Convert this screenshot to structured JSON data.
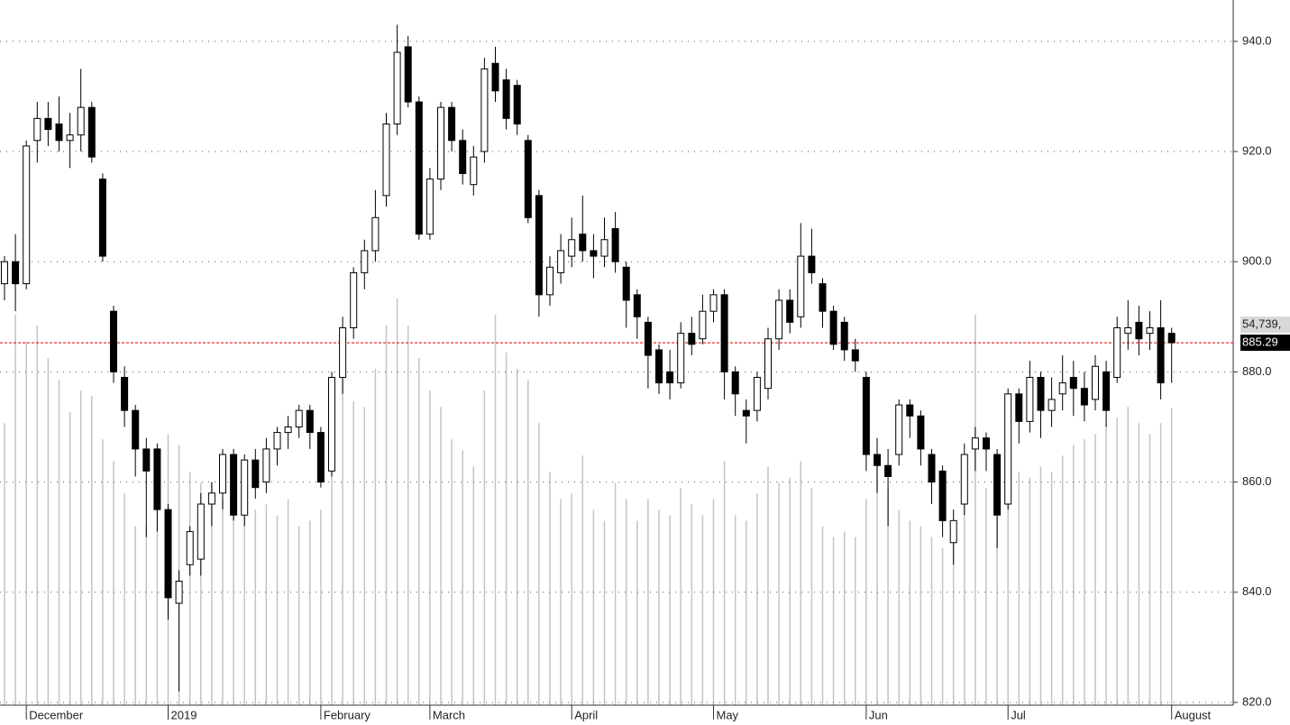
{
  "chart_data": {
    "type": "candlestick",
    "categories": [
      null,
      null,
      "December",
      null,
      null,
      null,
      null,
      null,
      null,
      null,
      null,
      null,
      null,
      null,
      null,
      "2019",
      null,
      null,
      null,
      null,
      null,
      null,
      null,
      null,
      null,
      null,
      null,
      null,
      null,
      "February",
      null,
      null,
      null,
      null,
      null,
      null,
      null,
      null,
      null,
      "March",
      null,
      null,
      null,
      null,
      null,
      null,
      null,
      null,
      null,
      null,
      null,
      null,
      "April",
      null,
      null,
      null,
      null,
      null,
      null,
      null,
      null,
      null,
      null,
      null,
      null,
      "May",
      null,
      null,
      null,
      null,
      null,
      null,
      null,
      null,
      null,
      null,
      null,
      null,
      null,
      "Jun",
      null,
      null,
      null,
      null,
      null,
      null,
      null,
      null,
      null,
      null,
      null,
      null,
      "Jul",
      null,
      null,
      null,
      null,
      null,
      null,
      null,
      null,
      null,
      null,
      null,
      null,
      null,
      null,
      "August"
    ],
    "open": [
      896,
      900,
      896,
      922,
      926,
      925,
      922,
      923,
      928,
      915,
      891,
      879,
      873,
      866,
      866,
      855,
      838,
      845,
      846,
      856,
      858,
      865,
      854,
      864,
      860,
      866,
      869,
      870,
      873,
      869,
      862,
      879,
      888,
      898,
      902,
      912,
      925,
      939,
      929,
      905,
      915,
      928,
      922,
      914,
      920,
      936,
      933,
      932,
      922,
      912,
      894,
      898,
      901,
      905,
      902,
      901,
      906,
      899,
      894,
      889,
      884,
      880,
      878,
      887,
      886,
      891,
      894,
      880,
      873,
      873,
      877,
      886,
      893,
      890,
      901,
      896,
      891,
      889,
      884,
      879,
      865,
      863,
      865,
      874,
      872,
      865,
      862,
      849,
      856,
      866,
      868,
      865,
      856,
      876,
      871,
      879,
      873,
      876,
      879,
      877,
      875,
      880,
      879,
      887,
      889,
      887,
      888,
      887
    ],
    "high": [
      901,
      905,
      922,
      929,
      929,
      930,
      927,
      935,
      929,
      916,
      892,
      881,
      874,
      868,
      867,
      856,
      844,
      852,
      858,
      860,
      866,
      866,
      865,
      866,
      868,
      870,
      872,
      874,
      874,
      870,
      880,
      890,
      899,
      904,
      913,
      927,
      943,
      941,
      930,
      917,
      929,
      929,
      924,
      921,
      937,
      939,
      935,
      933,
      923,
      913,
      901,
      905,
      908,
      912,
      905,
      908,
      909,
      900,
      895,
      890,
      885,
      884,
      889,
      890,
      894,
      895,
      895,
      881,
      875,
      880,
      888,
      895,
      895,
      907,
      906,
      897,
      892,
      890,
      886,
      880,
      868,
      866,
      875,
      875,
      873,
      866,
      863,
      855,
      867,
      870,
      869,
      866,
      877,
      877,
      882,
      880,
      879,
      883,
      882,
      880,
      883,
      882,
      890,
      893,
      892,
      891,
      893,
      888
    ],
    "low": [
      893,
      891,
      895,
      918,
      921,
      920,
      917,
      920,
      918,
      900,
      878,
      870,
      861,
      850,
      851,
      835,
      822,
      843,
      843,
      852,
      855,
      853,
      852,
      857,
      858,
      863,
      866,
      868,
      866,
      859,
      861,
      876,
      886,
      895,
      900,
      910,
      923,
      928,
      904,
      904,
      913,
      920,
      914,
      912,
      918,
      929,
      924,
      923,
      907,
      890,
      892,
      896,
      899,
      900,
      897,
      899,
      898,
      888,
      886,
      877,
      876,
      875,
      877,
      883,
      885,
      889,
      875,
      872,
      867,
      871,
      875,
      884,
      887,
      888,
      896,
      888,
      884,
      882,
      880,
      862,
      858,
      852,
      863,
      868,
      863,
      856,
      850,
      845,
      854,
      862,
      862,
      848,
      855,
      867,
      869,
      868,
      870,
      873,
      872,
      871,
      873,
      870,
      878,
      884,
      883,
      884,
      875,
      878
    ],
    "close": [
      900,
      896,
      921,
      926,
      924,
      922,
      923,
      928,
      919,
      901,
      880,
      873,
      866,
      862,
      855,
      839,
      842,
      851,
      856,
      858,
      865,
      854,
      864,
      859,
      866,
      869,
      870,
      873,
      869,
      860,
      879,
      888,
      898,
      902,
      908,
      925,
      938,
      929,
      905,
      915,
      928,
      922,
      916,
      919,
      935,
      931,
      926,
      925,
      908,
      894,
      899,
      902,
      904,
      902,
      901,
      904,
      900,
      893,
      890,
      883,
      878,
      878,
      887,
      885,
      891,
      894,
      880,
      876,
      872,
      879,
      886,
      893,
      889,
      901,
      898,
      891,
      885,
      884,
      882,
      865,
      863,
      861,
      874,
      872,
      866,
      860,
      853,
      853,
      865,
      868,
      866,
      854,
      876,
      871,
      879,
      873,
      875,
      878,
      877,
      874,
      881,
      873,
      888,
      888,
      886,
      888,
      878,
      885.29
    ],
    "volume": [
      52000,
      72000,
      67000,
      70000,
      64000,
      60000,
      54000,
      58000,
      57000,
      49000,
      45000,
      39000,
      33000,
      33000,
      40000,
      50000,
      48000,
      43000,
      41000,
      41000,
      38000,
      40000,
      37000,
      36000,
      37000,
      35000,
      38000,
      33000,
      34000,
      36000,
      55000,
      60000,
      56000,
      55000,
      62000,
      70000,
      75000,
      70000,
      64000,
      58000,
      55000,
      49000,
      47000,
      44000,
      58000,
      72000,
      65000,
      62000,
      60000,
      52000,
      43000,
      38000,
      39000,
      46000,
      36000,
      34000,
      41000,
      38000,
      34000,
      38000,
      36000,
      35000,
      40000,
      37000,
      35000,
      38000,
      45000,
      35000,
      34000,
      39000,
      44000,
      41000,
      42000,
      45000,
      40000,
      33000,
      31000,
      32000,
      31000,
      38000,
      45000,
      40000,
      36000,
      34000,
      33000,
      31000,
      29000,
      32000,
      37000,
      72000,
      40000,
      45000,
      43000,
      43000,
      42000,
      44000,
      43000,
      46000,
      48000,
      49000,
      50000,
      52000,
      53000,
      55000,
      52000,
      50000,
      52000,
      54739
    ],
    "ylim": [
      819.5,
      947.5
    ],
    "yticks": [
      {
        "value": 820,
        "label": "820.0"
      },
      {
        "value": 840,
        "label": "840.0"
      },
      {
        "value": 860,
        "label": "860.0"
      },
      {
        "value": 880,
        "label": "880.0"
      },
      {
        "value": 900,
        "label": "900.0"
      },
      {
        "value": 920,
        "label": "920.0"
      },
      {
        "value": 940,
        "label": "940.0"
      }
    ],
    "volume_ylim": [
      0,
      130000
    ],
    "last_price": 885.29,
    "last_volume": {
      "value": 54739,
      "label": "54,739,"
    },
    "up_color": "#ffffff",
    "down_color": "#000000",
    "volume_color": "#c4c4c4",
    "last_price_color": "#e00000",
    "grid": true
  }
}
